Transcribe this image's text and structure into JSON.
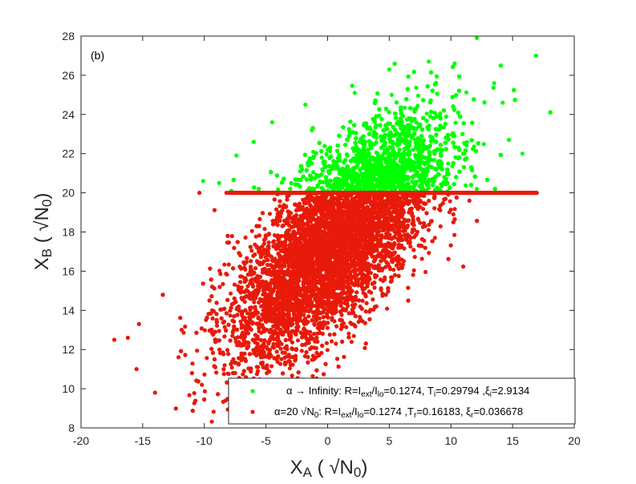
{
  "chart_data": {
    "type": "scatter",
    "panel_label": "(b)",
    "xlabel": {
      "main": "X",
      "sub": "A",
      "unit_pre": "( √N",
      "unit_sub": "0",
      "unit_post": ")"
    },
    "ylabel": {
      "main": "X",
      "sub": "B",
      "unit_pre": "( √N",
      "unit_sub": "0",
      "unit_post": ")"
    },
    "xlim": [
      -20,
      20
    ],
    "ylim": [
      8,
      28
    ],
    "xticks": [
      -20,
      -15,
      -10,
      -5,
      0,
      5,
      10,
      15,
      20
    ],
    "yticks": [
      8,
      10,
      12,
      14,
      16,
      18,
      20,
      22,
      24,
      26,
      28
    ],
    "grid": false,
    "legend_position": "bottom-right",
    "series": [
      {
        "name": "α → Infinity: R=I_ext/I_lo=0.1274, T_i=0.29794 ,ξ_i=2.9134",
        "legend_parts": [
          {
            "t": "α → Infinity: R=I"
          },
          {
            "t": "ext",
            "sub": true
          },
          {
            "t": "/I"
          },
          {
            "t": "lo",
            "sub": true
          },
          {
            "t": "=0.1274, T"
          },
          {
            "t": "i",
            "sub": true
          },
          {
            "t": "=0.29794 ,ξ"
          },
          {
            "t": "i",
            "sub": true
          },
          {
            "t": "=2.9134"
          }
        ],
        "color": "#00ff00",
        "region": "upper (X_B > 20)",
        "points": [
          [
            12.1,
            27.9
          ],
          [
            16.9,
            27.0
          ],
          [
            10.3,
            26.6
          ],
          [
            8.2,
            26.7
          ],
          [
            5.0,
            26.3
          ],
          [
            13.5,
            25.6
          ],
          [
            2.2,
            25.1
          ],
          [
            -1.8,
            24.5
          ],
          [
            14.2,
            24.6
          ],
          [
            15.8,
            22.0
          ],
          [
            14.7,
            22.7
          ],
          [
            -4.5,
            23.6
          ],
          [
            -6.0,
            22.6
          ],
          [
            -7.4,
            21.9
          ],
          [
            -8.8,
            20.5
          ],
          [
            -10.1,
            20.6
          ],
          [
            -7.8,
            20.1
          ],
          [
            12.1,
            20.2
          ]
        ],
        "approx_count": "dense cloud (~10^5 points)"
      },
      {
        "name": "α=20 √N_0: R=I_ext/I_lo=0.1274 ,T_r=0.16183, ξ_r=0.036678",
        "legend_parts": [
          {
            "t": "α=20 √N"
          },
          {
            "t": "0",
            "sub": true
          },
          {
            "t": ": R=I"
          },
          {
            "t": "ext",
            "sub": true
          },
          {
            "t": "/I"
          },
          {
            "t": "lo",
            "sub": true
          },
          {
            "t": "=0.1274 ,T"
          },
          {
            "t": "r",
            "sub": true
          },
          {
            "t": "=0.16183, ξ"
          },
          {
            "t": "r",
            "sub": true
          },
          {
            "t": "=0.036678"
          }
        ],
        "color": "#e81a0a",
        "region": "lower (X_B ≤ 20), saturated line at X_B = 20",
        "points": [
          [
            -17.3,
            12.5
          ],
          [
            -15.5,
            11.0
          ],
          [
            -14.0,
            9.8
          ],
          [
            -16.2,
            12.6
          ],
          [
            -15.3,
            13.3
          ],
          [
            -10.2,
            10.2
          ],
          [
            -7.0,
            10.4
          ],
          [
            -10.4,
            20.0
          ],
          [
            -8.2,
            20.0
          ],
          [
            14.8,
            20.0
          ],
          [
            15.6,
            20.0
          ],
          [
            16.4,
            20.0
          ],
          [
            16.9,
            20.0
          ],
          [
            11.5,
            19.6
          ],
          [
            10.2,
            18.9
          ],
          [
            8.7,
            17.7
          ]
        ],
        "saturation_line": {
          "y": 20,
          "x_from": -8,
          "x_to": 17
        },
        "approx_count": "dense cloud (~10^5 points)"
      }
    ]
  }
}
